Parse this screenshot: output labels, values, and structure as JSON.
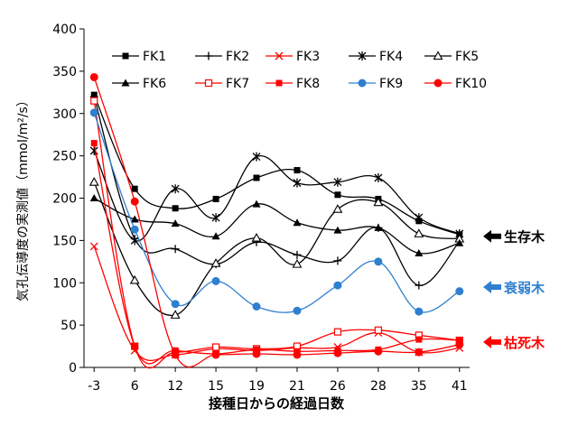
{
  "chart_data": {
    "type": "line",
    "title": "",
    "xlabel": "接種日からの経過日数",
    "ylabel": "気孔伝導度の実測値（mmol/m²/s）",
    "categories": [
      "-3",
      "6",
      "12",
      "15",
      "19",
      "21",
      "26",
      "28",
      "35",
      "41"
    ],
    "ylim": [
      0,
      400
    ],
    "yticks": [
      0,
      50,
      100,
      150,
      200,
      250,
      300,
      350,
      400
    ],
    "grid": false,
    "legend_position": "top",
    "series": [
      {
        "name": "FK1",
        "color": "#000000",
        "marker": "square-filled",
        "values": [
          322,
          211,
          188,
          199,
          224,
          233,
          204,
          199,
          173,
          157
        ]
      },
      {
        "name": "FK2",
        "color": "#000000",
        "marker": "plus",
        "values": [
          320,
          152,
          140,
          122,
          148,
          133,
          126,
          165,
          97,
          149
        ]
      },
      {
        "name": "FK3",
        "color": "#ff0000",
        "marker": "x",
        "values": [
          143,
          20,
          15,
          22,
          20,
          23,
          24,
          41,
          18,
          23
        ]
      },
      {
        "name": "FK4",
        "color": "#000000",
        "marker": "star",
        "values": [
          256,
          150,
          211,
          177,
          249,
          218,
          219,
          224,
          177,
          158
        ]
      },
      {
        "name": "FK5",
        "color": "#000000",
        "marker": "triangle-open",
        "values": [
          219,
          103,
          62,
          123,
          153,
          122,
          187,
          195,
          158,
          152
        ]
      },
      {
        "name": "FK6",
        "color": "#000000",
        "marker": "triangle-filled",
        "values": [
          200,
          175,
          170,
          155,
          193,
          171,
          162,
          165,
          135,
          147
        ]
      },
      {
        "name": "FK7",
        "color": "#ff0000",
        "marker": "square-open",
        "values": [
          315,
          25,
          18,
          24,
          22,
          25,
          42,
          44,
          38,
          32
        ]
      },
      {
        "name": "FK8",
        "color": "#ff0000",
        "marker": "square-filled",
        "values": [
          265,
          25,
          20,
          16,
          21,
          19,
          20,
          21,
          33,
          32
        ]
      },
      {
        "name": "FK9",
        "color": "#2e7fcf",
        "marker": "circle-filled",
        "values": [
          301,
          163,
          75,
          102,
          72,
          67,
          97,
          125,
          66,
          90
        ]
      },
      {
        "name": "FK10",
        "color": "#ff0000",
        "marker": "circle-filled",
        "values": [
          343,
          196,
          15,
          15,
          16,
          15,
          17,
          19,
          18,
          27
        ]
      }
    ],
    "annotations": [
      {
        "text": "生存木",
        "color": "#000000",
        "y": 155
      },
      {
        "text": "衰弱木",
        "color": "#2e7fcf",
        "y": 95
      },
      {
        "text": "枯死木",
        "color": "#ff0000",
        "y": 30
      }
    ]
  }
}
